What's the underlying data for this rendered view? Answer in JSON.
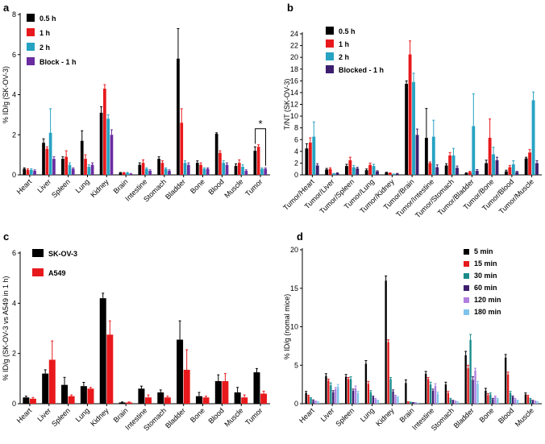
{
  "chart_data": [
    {
      "type": "bar",
      "panel": "a",
      "ylabel": "% ID/g (SK-OV-3)",
      "ylim": [
        0,
        8
      ],
      "yticks": [
        0,
        2,
        4,
        6,
        8
      ],
      "categories": [
        "Heart",
        "Liver",
        "Spleen",
        "Lung",
        "Kidney",
        "Brain",
        "Intestine",
        "Stomach",
        "Bladder",
        "Bone",
        "Blood",
        "Muscle",
        "Tumor"
      ],
      "legend_position": "top-left",
      "annotation": "*",
      "series": [
        {
          "name": "0.5 h",
          "color": "#000000",
          "values": [
            0.3,
            1.6,
            0.8,
            1.7,
            3.1,
            0.1,
            0.5,
            0.8,
            5.8,
            0.6,
            2.05,
            0.45,
            1.2
          ],
          "errors": [
            0.05,
            0.2,
            0.1,
            0.5,
            0.3,
            0.02,
            0.1,
            0.1,
            1.5,
            0.1,
            0.05,
            0.1,
            0.2
          ]
        },
        {
          "name": "1 h",
          "color": "#e8191c",
          "values": [
            0.25,
            1.3,
            0.9,
            0.8,
            4.3,
            0.1,
            0.6,
            0.6,
            2.6,
            0.5,
            1.1,
            0.6,
            1.4
          ],
          "errors": [
            0.05,
            0.1,
            0.3,
            0.2,
            0.2,
            0.02,
            0.15,
            0.1,
            0.7,
            0.1,
            0.1,
            0.15,
            0.1
          ]
        },
        {
          "name": "2 h",
          "color": "#26a3c2",
          "values": [
            0.25,
            2.1,
            0.5,
            0.4,
            2.8,
            0.1,
            0.3,
            0.3,
            0.6,
            0.3,
            0.6,
            0.4,
            0.3
          ],
          "errors": [
            0.05,
            1.2,
            0.1,
            0.1,
            0.2,
            0.02,
            0.05,
            0.05,
            0.1,
            0.05,
            0.1,
            0.1,
            0.05
          ]
        },
        {
          "name": "Block - 1 h",
          "color": "#6a2ca0",
          "values": [
            0.2,
            0.8,
            0.3,
            0.5,
            2.0,
            0.05,
            0.2,
            0.2,
            0.5,
            0.3,
            0.5,
            0.2,
            0.3
          ],
          "errors": [
            0.05,
            0.1,
            0.05,
            0.1,
            0.25,
            0.02,
            0.05,
            0.05,
            0.1,
            0.05,
            0.1,
            0.05,
            0.05
          ]
        }
      ]
    },
    {
      "type": "bar",
      "panel": "b",
      "ylabel": "T/NT (SK-OV-3)",
      "ylim": [
        0,
        24
      ],
      "yticks": [
        0,
        2,
        4,
        6,
        8,
        10,
        12,
        14,
        16,
        18,
        20,
        22,
        24
      ],
      "categories": [
        "Tumor/Heart",
        "Tumor/Liver",
        "Tumor/Spleen",
        "Tumor/Lung",
        "Tumor/Kidney",
        "Tumor/Brain",
        "Tumor/Intestine",
        "Tumor/Stomach",
        "Tumor/Bladder",
        "Tumor/Bone",
        "Tumor/Blood",
        "Tumor/Muscle"
      ],
      "legend_position": "top-left",
      "series": [
        {
          "name": "0.5 h",
          "color": "#000000",
          "values": [
            4.5,
            0.9,
            1.5,
            0.8,
            0.4,
            15.5,
            6.3,
            1.6,
            0.3,
            2.0,
            0.6,
            2.8
          ],
          "errors": [
            0.8,
            0.2,
            0.3,
            0.2,
            0.05,
            0.5,
            5.0,
            0.3,
            0.05,
            0.5,
            0.2,
            0.2
          ]
        },
        {
          "name": "1 h",
          "color": "#e8191c",
          "values": [
            5.5,
            1.0,
            2.5,
            1.7,
            0.3,
            20.5,
            2.0,
            3.3,
            0.5,
            6.3,
            1.3,
            3.8
          ],
          "errors": [
            0.8,
            0.2,
            0.5,
            0.3,
            0.05,
            2.3,
            0.2,
            0.5,
            0.1,
            3.2,
            0.3,
            0.5
          ]
        },
        {
          "name": "2 h",
          "color": "#26a3c2",
          "values": [
            6.5,
            0.2,
            1.3,
            1.5,
            0.1,
            15.8,
            6.5,
            3.3,
            8.3,
            3.5,
            1.8,
            12.7
          ],
          "errors": [
            2.5,
            0.05,
            0.3,
            0.3,
            0.05,
            1.5,
            2.8,
            1.2,
            5.5,
            1.2,
            0.6,
            1.4
          ]
        },
        {
          "name": "Blocked - 1 h",
          "color": "#3d1e6e",
          "values": [
            1.6,
            0.3,
            1.1,
            0.6,
            0.2,
            6.8,
            1.3,
            1.2,
            0.7,
            2.5,
            0.5,
            2.0
          ],
          "errors": [
            0.3,
            0.05,
            0.2,
            0.1,
            0.05,
            1.0,
            0.4,
            0.3,
            0.2,
            0.5,
            0.1,
            0.4
          ]
        }
      ]
    },
    {
      "type": "bar",
      "panel": "c",
      "ylabel": "% ID/g (SK-OV-3 vs A549 in 1 h)",
      "ylim": [
        0,
        6
      ],
      "yticks": [
        0,
        2,
        4,
        6
      ],
      "categories": [
        "Heart",
        "Liver",
        "Spleen",
        "Lung",
        "Kidney",
        "Brain",
        "Intestine",
        "Stomach",
        "Bladder",
        "Bone",
        "Blood",
        "Muscle",
        "Tumor"
      ],
      "legend_position": "top-left",
      "series": [
        {
          "name": "SK-OV-3",
          "color": "#000000",
          "values": [
            0.25,
            1.2,
            0.75,
            0.7,
            4.2,
            0.05,
            0.6,
            0.45,
            2.55,
            0.3,
            0.9,
            0.45,
            1.25
          ],
          "errors": [
            0.05,
            0.15,
            0.3,
            0.15,
            0.2,
            0.02,
            0.1,
            0.1,
            0.75,
            0.15,
            0.25,
            0.2,
            0.15
          ]
        },
        {
          "name": "A549",
          "color": "#e8191c",
          "values": [
            0.2,
            1.75,
            0.3,
            0.6,
            2.75,
            0.05,
            0.25,
            0.25,
            1.35,
            0.25,
            0.9,
            0.25,
            0.4
          ],
          "errors": [
            0.05,
            0.75,
            0.05,
            0.05,
            0.55,
            0.02,
            0.1,
            0.05,
            0.8,
            0.05,
            0.3,
            0.1,
            0.1
          ]
        }
      ]
    },
    {
      "type": "bar",
      "panel": "d",
      "ylabel": "% ID/g (nomal mice)",
      "ylim": [
        0,
        20
      ],
      "yticks": [
        0,
        5,
        10,
        15,
        20
      ],
      "categories": [
        "Heart",
        "Liver",
        "Spleen",
        "Lung",
        "Kidney",
        "Brain",
        "Intestine",
        "Stomach",
        "Bladder",
        "Bone",
        "Blood",
        "Muscle"
      ],
      "legend_position": "top-right",
      "series": [
        {
          "name": "5 min",
          "color": "#000000",
          "values": [
            1.4,
            3.6,
            3.5,
            5.2,
            16.0,
            2.7,
            3.9,
            2.5,
            6.3,
            1.7,
            6.0,
            1.2
          ],
          "errors": [
            0.2,
            0.3,
            0.3,
            0.4,
            0.6,
            0.4,
            0.3,
            0.3,
            0.5,
            0.3,
            0.4,
            0.2
          ]
        },
        {
          "name": "15 min",
          "color": "#e8191c",
          "values": [
            1.0,
            3.0,
            3.2,
            2.6,
            8.0,
            0.2,
            3.2,
            1.4,
            4.6,
            1.1,
            3.8,
            1.0
          ],
          "errors": [
            0.1,
            0.2,
            0.2,
            0.3,
            0.3,
            0.05,
            0.2,
            0.2,
            0.4,
            0.2,
            0.3,
            0.1
          ]
        },
        {
          "name": "30 min",
          "color": "#1a8c8c",
          "values": [
            0.7,
            2.4,
            3.2,
            1.5,
            3.2,
            0.15,
            2.5,
            0.6,
            8.3,
            1.2,
            1.4,
            0.6
          ],
          "errors": [
            0.1,
            0.3,
            0.3,
            0.2,
            0.2,
            0.05,
            0.3,
            0.1,
            0.7,
            0.2,
            0.2,
            0.1
          ]
        },
        {
          "name": "60 min",
          "color": "#3d1e6e",
          "values": [
            0.4,
            1.5,
            1.7,
            0.9,
            1.6,
            0.1,
            1.7,
            0.4,
            3.1,
            0.6,
            0.9,
            0.4
          ],
          "errors": [
            0.1,
            0.2,
            0.2,
            0.1,
            0.2,
            0.05,
            0.2,
            0.05,
            0.4,
            0.1,
            0.1,
            0.05
          ]
        },
        {
          "name": "120 min",
          "color": "#b07fe0",
          "values": [
            0.3,
            1.9,
            2.0,
            0.6,
            1.0,
            0.1,
            2.3,
            0.3,
            4.3,
            0.9,
            0.6,
            0.3
          ],
          "errors": [
            0.05,
            0.2,
            0.3,
            0.1,
            0.1,
            0.05,
            0.3,
            0.05,
            0.3,
            0.1,
            0.1,
            0.05
          ]
        },
        {
          "name": "180 min",
          "color": "#7ec3ec",
          "values": [
            0.2,
            2.2,
            1.4,
            0.4,
            0.8,
            0.05,
            1.3,
            0.2,
            2.6,
            0.6,
            0.4,
            0.2
          ],
          "errors": [
            0.05,
            0.3,
            0.2,
            0.05,
            0.1,
            0.02,
            0.2,
            0.05,
            0.3,
            0.1,
            0.05,
            0.05
          ]
        }
      ]
    }
  ]
}
